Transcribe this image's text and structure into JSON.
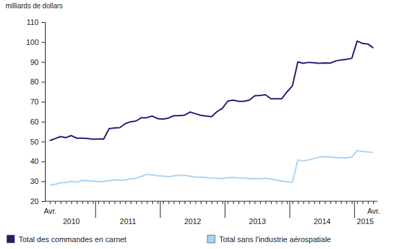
{
  "chart_data": {
    "type": "line",
    "y_label": "milliards de dollars",
    "categories": [
      "Avr.",
      null,
      null,
      null,
      null,
      null,
      null,
      null,
      null,
      null,
      null,
      null,
      null,
      null,
      null,
      null,
      null,
      null,
      null,
      null,
      null,
      null,
      null,
      null,
      null,
      null,
      null,
      null,
      null,
      null,
      null,
      null,
      null,
      null,
      null,
      null,
      null,
      null,
      null,
      null,
      null,
      null,
      null,
      null,
      null,
      null,
      null,
      null,
      null,
      null,
      null,
      null,
      null,
      null,
      null,
      null,
      null,
      null,
      null,
      null,
      "Avr."
    ],
    "x_groups": [
      {
        "label": "2010",
        "start": 0,
        "end": 8
      },
      {
        "label": "2011",
        "start": 9,
        "end": 20
      },
      {
        "label": "2012",
        "start": 21,
        "end": 32
      },
      {
        "label": "2013",
        "start": 33,
        "end": 44
      },
      {
        "label": "2014",
        "start": 45,
        "end": 56
      },
      {
        "label": "2015",
        "start": 57,
        "end": 60
      }
    ],
    "ylim": [
      20,
      110
    ],
    "yticks": [
      20,
      30,
      40,
      50,
      60,
      70,
      80,
      90,
      100,
      110
    ],
    "grid": false,
    "legend": "bottom",
    "series": [
      {
        "name": "Total des commandes en carnet",
        "color": "#211d70",
        "values": [
          50.5,
          51.5,
          52.5,
          52,
          53,
          51.7,
          51.7,
          51.5,
          51.2,
          51.3,
          51.3,
          56.5,
          56.8,
          57,
          59,
          60,
          60.3,
          62,
          62,
          62.8,
          61.5,
          61.3,
          61.8,
          63,
          63,
          63.3,
          64.8,
          64,
          63.2,
          62.8,
          62.5,
          65,
          66.7,
          70.3,
          70.8,
          70.2,
          70.2,
          70.8,
          73,
          73.2,
          73.5,
          71.5,
          71.5,
          71.5,
          75,
          78,
          90,
          89.3,
          89.8,
          89.6,
          89.3,
          89.5,
          89.4,
          90.5,
          91,
          91.3,
          91.8,
          100.5,
          99.3,
          99,
          97
        ]
      },
      {
        "name": "Total sans l'industrie aérospatiale",
        "color": "#a8d4f5",
        "values": [
          28.2,
          28.5,
          29.3,
          29.5,
          30,
          29.6,
          30.5,
          30.3,
          30.2,
          29.8,
          30,
          30.3,
          30.8,
          30.5,
          30.8,
          31.3,
          31.5,
          32.5,
          33.5,
          33.3,
          32.8,
          32.7,
          32.3,
          32.8,
          33,
          33,
          32.6,
          32.2,
          32.1,
          32,
          31.6,
          31.6,
          31.4,
          31.8,
          32,
          31.7,
          31.6,
          31.4,
          31.5,
          31.3,
          31.6,
          31.2,
          30.6,
          30.2,
          29.7,
          29.6,
          40.8,
          40.2,
          40.8,
          41.5,
          42.2,
          42.4,
          42.2,
          42,
          41.8,
          41.8,
          42.2,
          45.5,
          45,
          44.8,
          44.5
        ]
      }
    ]
  }
}
